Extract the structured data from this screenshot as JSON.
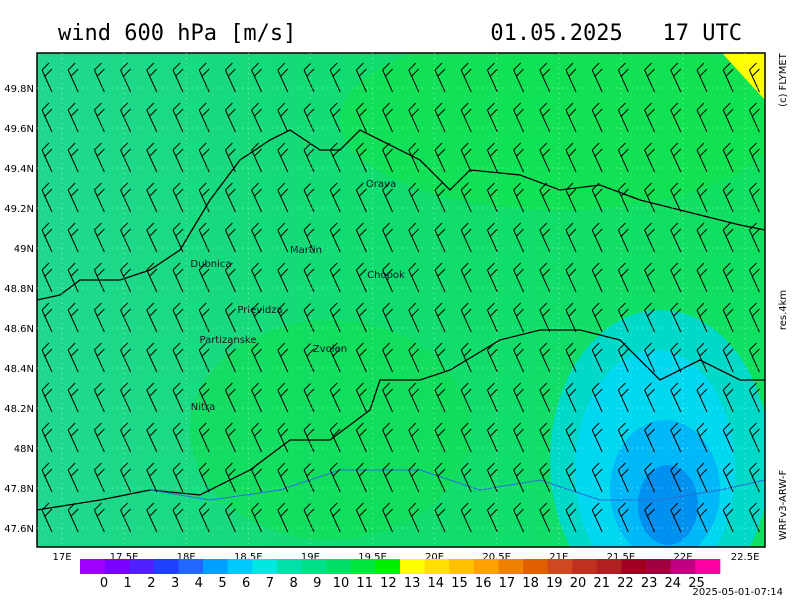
{
  "header": {
    "title": "wind 600 hPa [m/s]",
    "time": "01.05.2025   17 UTC"
  },
  "side_labels": {
    "copyright": "(c) FLYMET",
    "resolution": "res.4km",
    "model": "WRFv3-ARW-F"
  },
  "map": {
    "lat_labels": [
      "49.8N",
      "49.6N",
      "49.4N",
      "49.2N",
      "49N",
      "48.8N",
      "48.6N",
      "48.4N",
      "48.2N",
      "48N",
      "47.8N",
      "47.6N"
    ],
    "lon_labels": [
      "17E",
      "17.5E",
      "18E",
      "18.5E",
      "19E",
      "19.5E",
      "20E",
      "20.5E",
      "21E",
      "21.5E",
      "22E",
      "22.5E"
    ],
    "places": [
      "Orava",
      "Martin",
      "Dubnica",
      "Chopok",
      "Prievidza",
      "Partizanske",
      "Zvolen",
      "Nitra"
    ]
  },
  "colorbar": {
    "labels": [
      0,
      1,
      2,
      3,
      4,
      5,
      6,
      7,
      8,
      9,
      10,
      11,
      12,
      13,
      14,
      15,
      16,
      17,
      18,
      19,
      20,
      21,
      22,
      23,
      24,
      25
    ],
    "colors": [
      "#a000ff",
      "#7a00ff",
      "#5020ff",
      "#2040ff",
      "#2068ff",
      "#00a0ff",
      "#00c8ff",
      "#00e8e0",
      "#00e0a8",
      "#00e088",
      "#00e068",
      "#00e840",
      "#00f000",
      "#ffff00",
      "#ffe000",
      "#ffc000",
      "#ffa000",
      "#f08000",
      "#e06000",
      "#d04820",
      "#c03020",
      "#b02020",
      "#a00020",
      "#a00040",
      "#c00080",
      "#ff00a0"
    ]
  },
  "footer": {
    "timestamp": "2025-05-01-07:14"
  }
}
